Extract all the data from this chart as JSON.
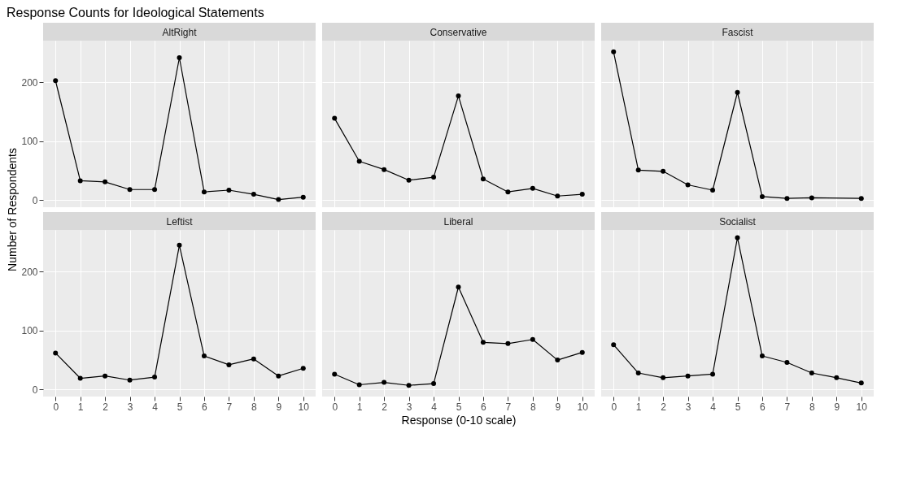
{
  "chart_data": [
    {
      "type": "line",
      "title": "AltRight",
      "annotations": [
        "Response Counts for Ideological Statements"
      ],
      "ylabel": "Number of Respondents",
      "x": [
        0,
        1,
        2,
        3,
        4,
        5,
        6,
        7,
        8,
        9,
        10
      ],
      "series": [
        {
          "color": "#000000",
          "values": [
            203,
            33,
            31,
            18,
            18,
            242,
            14,
            17,
            10,
            1,
            5
          ]
        }
      ],
      "xlim": [
        -0.5,
        10.5
      ],
      "ylim": [
        -12,
        271
      ],
      "xticks": [
        0,
        1,
        2,
        3,
        4,
        5,
        6,
        7,
        8,
        9,
        10
      ],
      "yticks": [
        0,
        100,
        200
      ],
      "grid": true,
      "marker": "circle",
      "tick_labels": "y"
    },
    {
      "type": "line",
      "title": "Conservative",
      "x": [
        0,
        1,
        2,
        3,
        4,
        5,
        6,
        7,
        8,
        9,
        10
      ],
      "series": [
        {
          "color": "#000000",
          "values": [
            139,
            66,
            52,
            34,
            39,
            177,
            36,
            14,
            20,
            7,
            10
          ]
        }
      ],
      "xlim": [
        -0.5,
        10.5
      ],
      "ylim": [
        -12,
        271
      ],
      "xticks": [
        0,
        1,
        2,
        3,
        4,
        5,
        6,
        7,
        8,
        9,
        10
      ],
      "yticks": [
        0,
        100,
        200
      ],
      "grid": true,
      "marker": "circle",
      "tick_labels": false
    },
    {
      "type": "line",
      "title": "Fascist",
      "x": [
        0,
        1,
        2,
        3,
        4,
        5,
        6,
        7,
        8,
        9,
        10
      ],
      "series": [
        {
          "color": "#000000",
          "values": [
            252,
            51,
            49,
            26,
            17,
            183,
            6,
            3,
            4,
            null,
            3
          ]
        }
      ],
      "xlim": [
        -0.5,
        10.5
      ],
      "ylim": [
        -12,
        271
      ],
      "xticks": [
        0,
        1,
        2,
        3,
        4,
        5,
        6,
        7,
        8,
        9,
        10
      ],
      "yticks": [
        0,
        100,
        200
      ],
      "grid": true,
      "marker": "circle",
      "tick_labels": false
    },
    {
      "type": "line",
      "title": "Leftist",
      "x": [
        0,
        1,
        2,
        3,
        4,
        5,
        6,
        7,
        8,
        9,
        10
      ],
      "series": [
        {
          "color": "#000000",
          "values": [
            62,
            19,
            23,
            16,
            21,
            245,
            57,
            42,
            52,
            23,
            36
          ]
        }
      ],
      "xlim": [
        -0.5,
        10.5
      ],
      "ylim": [
        -12,
        271
      ],
      "xticks": [
        0,
        1,
        2,
        3,
        4,
        5,
        6,
        7,
        8,
        9,
        10
      ],
      "yticks": [
        0,
        100,
        200
      ],
      "grid": true,
      "marker": "circle"
    },
    {
      "type": "line",
      "title": "Liberal",
      "xlabel": "Response (0-10 scale)",
      "x": [
        0,
        1,
        2,
        3,
        4,
        5,
        6,
        7,
        8,
        9,
        10
      ],
      "series": [
        {
          "color": "#000000",
          "values": [
            26,
            8,
            12,
            7,
            10,
            174,
            80,
            78,
            85,
            50,
            63
          ]
        }
      ],
      "xlim": [
        -0.5,
        10.5
      ],
      "ylim": [
        -12,
        271
      ],
      "xticks": [
        0,
        1,
        2,
        3,
        4,
        5,
        6,
        7,
        8,
        9,
        10
      ],
      "yticks": [
        0,
        100,
        200
      ],
      "grid": true,
      "marker": "circle",
      "tick_labels": "x"
    },
    {
      "type": "line",
      "title": "Socialist",
      "x": [
        0,
        1,
        2,
        3,
        4,
        5,
        6,
        7,
        8,
        9,
        10
      ],
      "series": [
        {
          "color": "#000000",
          "values": [
            76,
            28,
            20,
            23,
            26,
            258,
            57,
            46,
            28,
            20,
            11
          ]
        }
      ],
      "xlim": [
        -0.5,
        10.5
      ],
      "ylim": [
        -12,
        271
      ],
      "xticks": [
        0,
        1,
        2,
        3,
        4,
        5,
        6,
        7,
        8,
        9,
        10
      ],
      "yticks": [
        0,
        100,
        200
      ],
      "grid": true,
      "marker": "circle",
      "tick_labels": "x"
    }
  ]
}
